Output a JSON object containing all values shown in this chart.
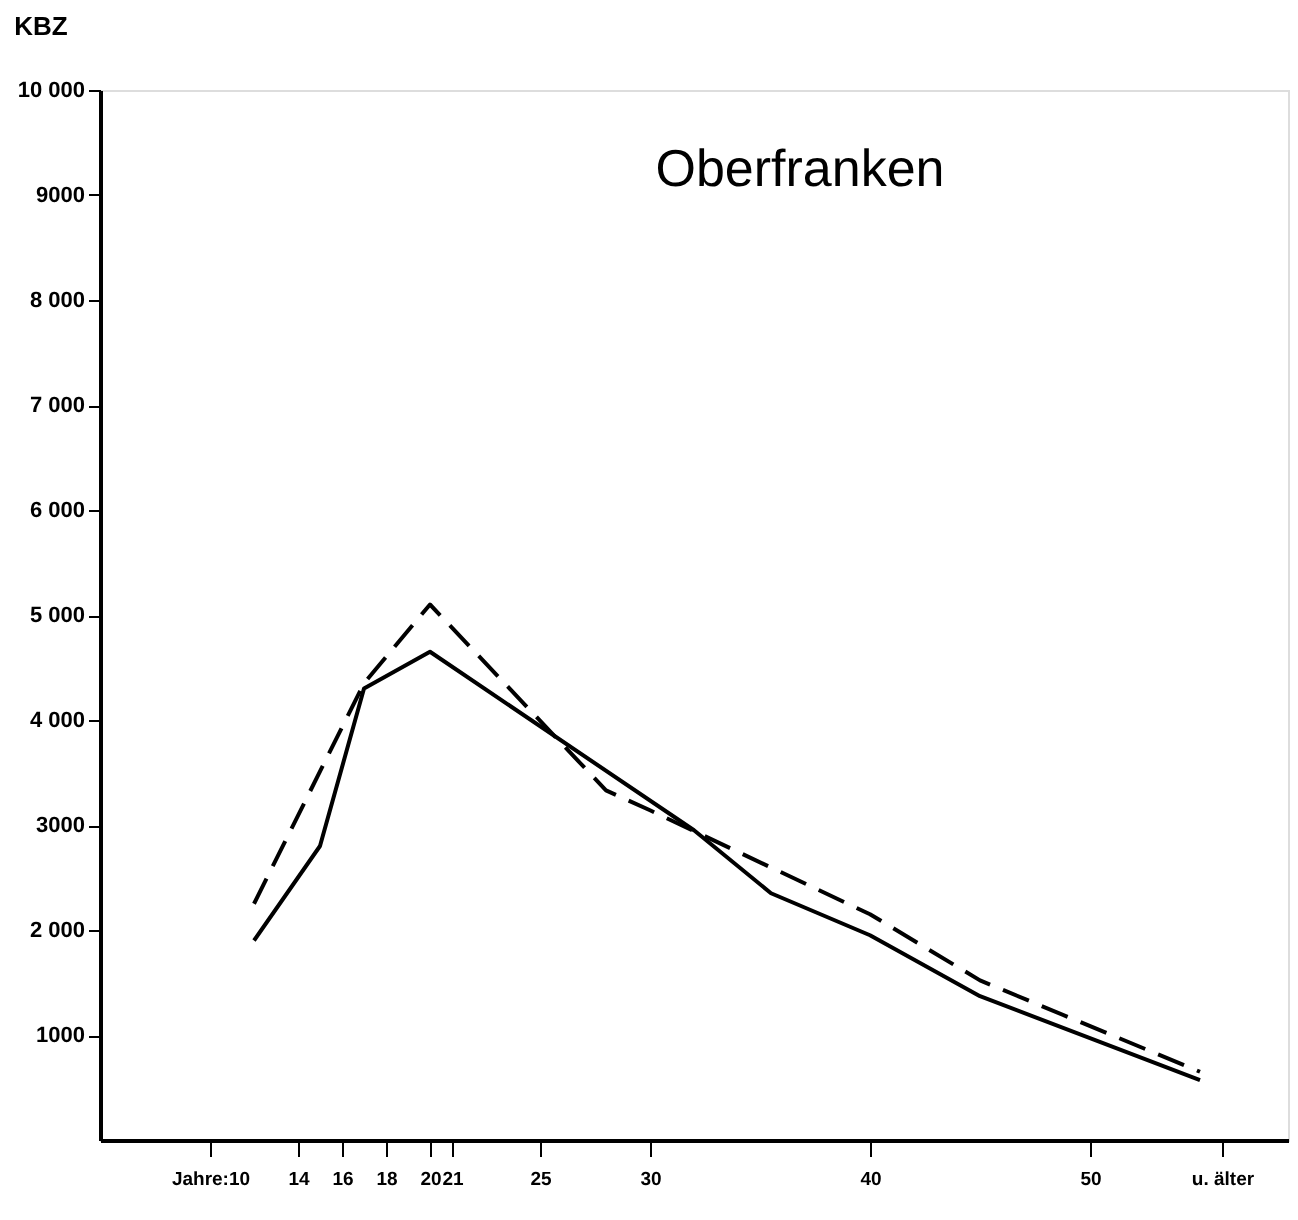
{
  "chart_data": {
    "type": "line",
    "title": "Oberfranken",
    "ylabel": "KBZ",
    "xlim": [
      5,
      59
    ],
    "xticks": [
      {
        "value": 10,
        "label": "Jahre:10"
      },
      14,
      16,
      18,
      20,
      21,
      25,
      30,
      40,
      50,
      {
        "value": 56,
        "label": "u. älter"
      }
    ],
    "ylim": [
      0,
      10000
    ],
    "yticks": [
      1000,
      {
        "value": 2000,
        "label": "2 000"
      },
      3000,
      {
        "value": 4000,
        "label": "4 000"
      },
      {
        "value": 5000,
        "label": "5 000"
      },
      {
        "value": 6000,
        "label": "6 000"
      },
      {
        "value": 7000,
        "label": "7 000"
      },
      {
        "value": 8000,
        "label": "8 000"
      },
      9000,
      {
        "value": 10000,
        "label": "10 000"
      }
    ],
    "grid": false,
    "marker": "none",
    "series": [
      {
        "color": "#000000",
        "line_style": "solid",
        "x": [
          12,
          15,
          17,
          20,
          32,
          35.5,
          40,
          45,
          55
        ],
        "values": [
          1900,
          2800,
          4300,
          4650,
          2950,
          2350,
          1950,
          1370,
          570
        ]
      },
      {
        "color": "#000000",
        "line_style": "dashed",
        "x": [
          12,
          17,
          20,
          28,
          30,
          40,
          45,
          55
        ],
        "values": [
          2250,
          4350,
          5100,
          3330,
          3140,
          2150,
          1520,
          650
        ]
      }
    ]
  }
}
